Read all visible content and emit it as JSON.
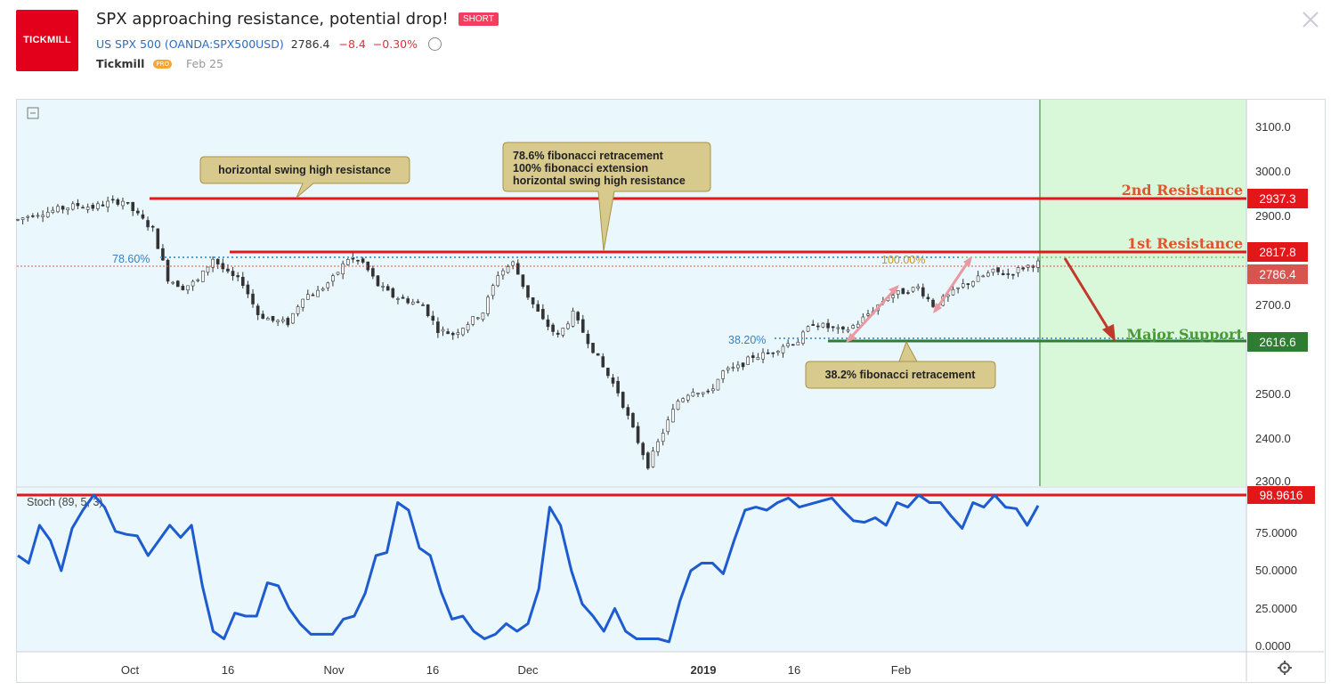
{
  "header": {
    "logo_text": "TICKMILL",
    "title": "SPX approaching resistance, potential drop!",
    "badge": "SHORT",
    "symbol": "US SPX 500",
    "exchange": "(OANDA:SPX500USD)",
    "price": "2786.4",
    "change": "−8.4",
    "change_pct": "−0.30%",
    "author": "Tickmill",
    "author_badge": "PRO",
    "date": "Feb 25",
    "alarm_icon": "alarm-clock-icon",
    "close_icon": "close-icon"
  },
  "colors": {
    "plot_bg": "#eaf8fd",
    "forecast_bg": "#d9f7d9",
    "resistance": "#e3161a",
    "support": "#2e7d32",
    "stoch_line": "#1e5bd0",
    "label_fill": "#d8c98c",
    "arrow": "#c0392b"
  },
  "chart_data": [
    {
      "type": "candlestick",
      "title": "US SPX 500",
      "x_ticks": [
        "Oct",
        "16",
        "Nov",
        "16",
        "Dec",
        "2019",
        "16",
        "Feb"
      ],
      "y_ticks": [
        "3100.0",
        "3000.0",
        "2900.0",
        "2700.0",
        "2500.0",
        "2400.0",
        "2300.0"
      ],
      "ylim": [
        2300,
        3100
      ],
      "close_series": {
        "x": [
          "Sep 17",
          "Sep 19",
          "Sep 21",
          "Sep 24",
          "Sep 26",
          "Sep 28",
          "Oct 1",
          "Oct 3",
          "Oct 5",
          "Oct 8",
          "Oct 10",
          "Oct 12",
          "Oct 15",
          "Oct 17",
          "Oct 19",
          "Oct 22",
          "Oct 24",
          "Oct 26",
          "Oct 29",
          "Oct 31",
          "Nov 2",
          "Nov 5",
          "Nov 7",
          "Nov 9",
          "Nov 12",
          "Nov 14",
          "Nov 16",
          "Nov 19",
          "Nov 21",
          "Nov 23",
          "Nov 26",
          "Nov 28",
          "Nov 30",
          "Dec 3",
          "Dec 5",
          "Dec 7",
          "Dec 10",
          "Dec 12",
          "Dec 14",
          "Dec 17",
          "Dec 19",
          "Dec 21",
          "Dec 24",
          "Dec 26",
          "Dec 28",
          "Dec 31",
          "Jan 2",
          "Jan 4",
          "Jan 7",
          "Jan 9",
          "Jan 11",
          "Jan 14",
          "Jan 16",
          "Jan 18",
          "Jan 21",
          "Jan 23",
          "Jan 25",
          "Jan 28",
          "Jan 30",
          "Feb 1",
          "Feb 4",
          "Feb 6",
          "Feb 8",
          "Feb 11",
          "Feb 13",
          "Feb 15",
          "Feb 18",
          "Feb 20",
          "Feb 22"
        ],
        "values": [
          2892,
          2905,
          2910,
          2918,
          2925,
          2920,
          2930,
          2935,
          2902,
          2870,
          2760,
          2740,
          2755,
          2805,
          2770,
          2750,
          2680,
          2665,
          2660,
          2720,
          2730,
          2760,
          2805,
          2795,
          2745,
          2720,
          2710,
          2700,
          2645,
          2635,
          2660,
          2685,
          2770,
          2795,
          2720,
          2665,
          2630,
          2680,
          2620,
          2560,
          2505,
          2420,
          2340,
          2415,
          2485,
          2510,
          2500,
          2550,
          2560,
          2585,
          2590,
          2610,
          2620,
          2660,
          2650,
          2640,
          2660,
          2690,
          2720,
          2730,
          2740,
          2700,
          2720,
          2745,
          2760,
          2775,
          2770,
          2785,
          2795
        ]
      },
      "annotations": [
        {
          "text": "horizontal swing high resistance",
          "kind": "callout"
        },
        {
          "text": "78.6% fibonacci retracement\n100% fibonacci extension\nhorizontal swing high resistance",
          "kind": "callout"
        },
        {
          "text": "38.2% fibonacci retracement",
          "kind": "callout"
        },
        {
          "text": "2nd Resistance",
          "value": 2937.3
        },
        {
          "text": "1st Resistance",
          "value": 2817.8
        },
        {
          "text": "Major Support",
          "value": 2616.6
        },
        {
          "text": "78.60%",
          "kind": "fib level"
        },
        {
          "text": "100.00%",
          "kind": "fib level"
        },
        {
          "text": "38.20%",
          "kind": "fib level"
        }
      ],
      "price_labels": [
        {
          "text": "2937.3",
          "value": 2937.3,
          "color": "#e3161a"
        },
        {
          "text": "2817.8",
          "value": 2817.8,
          "color": "#e3161a"
        },
        {
          "text": "2786.4",
          "value": 2786.4,
          "color": "#d9534f"
        },
        {
          "text": "2616.6",
          "value": 2616.6,
          "color": "#2e7d32"
        }
      ],
      "grid": false
    },
    {
      "type": "line",
      "title": "Stoch (89, 5, 3)",
      "y_ticks": [
        "75.0000",
        "50.0000",
        "25.0000",
        "0.0000"
      ],
      "ylim": [
        0,
        100
      ],
      "overbought_level": 98.9616,
      "overbought_label": "98.9616",
      "values": [
        60,
        55,
        80,
        70,
        50,
        78,
        90,
        100,
        92,
        76,
        74,
        73,
        60,
        70,
        80,
        72,
        80,
        40,
        10,
        5,
        22,
        20,
        20,
        42,
        40,
        25,
        15,
        8,
        8,
        8,
        18,
        20,
        35,
        60,
        62,
        95,
        90,
        65,
        60,
        36,
        18,
        20,
        10,
        5,
        8,
        15,
        10,
        15,
        38,
        92,
        80,
        50,
        28,
        20,
        10,
        25,
        10,
        5,
        5,
        5,
        3,
        30,
        50,
        55,
        55,
        48,
        70,
        90,
        92,
        90,
        95,
        98,
        92,
        94,
        96,
        98,
        90,
        83,
        82,
        85,
        80,
        95,
        92,
        100,
        95,
        95,
        86,
        78,
        95,
        92,
        100,
        92,
        91,
        80,
        93
      ]
    }
  ]
}
